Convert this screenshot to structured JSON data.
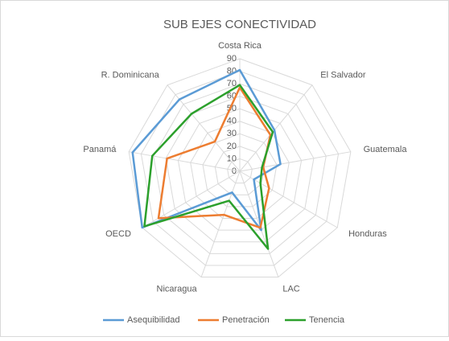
{
  "chart_data": {
    "type": "radar",
    "title": "SUB EJES CONECTIVIDAD",
    "categories": [
      "Costa Rica",
      "El Salvador",
      "Guatemala",
      "Honduras",
      "LAC",
      "Nicaragua",
      "OECD",
      "Panamá",
      "R. Dominicana"
    ],
    "series": [
      {
        "name": "Asequibilidad",
        "color": "#5b9bd5",
        "values": [
          81,
          43,
          33,
          13,
          50,
          18,
          90,
          87,
          75
        ]
      },
      {
        "name": "Penetración",
        "color": "#ed7d31",
        "values": [
          67,
          38,
          19,
          27,
          48,
          37,
          75,
          59,
          31
        ]
      },
      {
        "name": "Tenencia",
        "color": "#2ca02c",
        "values": [
          69,
          41,
          18,
          19,
          66,
          25,
          88,
          71,
          60
        ]
      }
    ],
    "ylim": [
      0,
      90
    ],
    "yticks": [
      0,
      10,
      20,
      30,
      40,
      50,
      60,
      70,
      80,
      90
    ],
    "grid": true
  }
}
